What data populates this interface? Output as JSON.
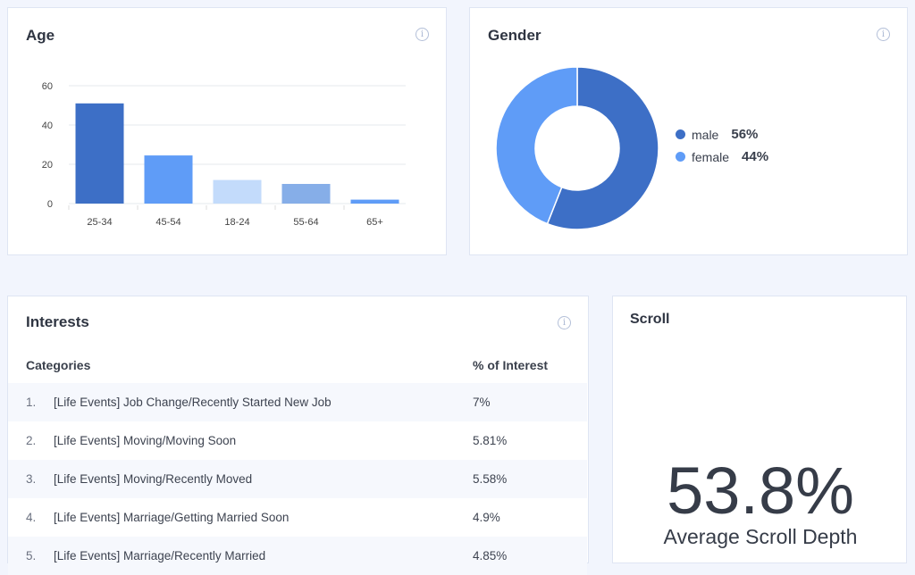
{
  "age": {
    "title": "Age"
  },
  "gender": {
    "title": "Gender",
    "legend": [
      {
        "label": "male",
        "value": "56%",
        "color": "#3d6fc6"
      },
      {
        "label": "female",
        "value": "44%",
        "color": "#5f9cf7"
      }
    ]
  },
  "interests": {
    "title": "Interests",
    "col_category": "Categories",
    "col_percent": "% of Interest",
    "rows": [
      {
        "n": "1.",
        "category": "[Life Events] Job Change/Recently Started New Job",
        "percent": "7%"
      },
      {
        "n": "2.",
        "category": "[Life Events] Moving/Moving Soon",
        "percent": "5.81%"
      },
      {
        "n": "3.",
        "category": "[Life Events] Moving/Recently Moved",
        "percent": "5.58%"
      },
      {
        "n": "4.",
        "category": "[Life Events] Marriage/Getting Married Soon",
        "percent": "4.9%"
      },
      {
        "n": "5.",
        "category": "[Life Events] Marriage/Recently Married",
        "percent": "4.85%"
      }
    ]
  },
  "scroll": {
    "title": "Scroll",
    "value": "53.8%",
    "label": "Average Scroll Depth"
  },
  "chart_data": [
    {
      "type": "bar",
      "title": "Age",
      "categories": [
        "25-34",
        "45-54",
        "18-24",
        "55-64",
        "65+"
      ],
      "values": [
        51,
        24.5,
        12,
        10,
        2
      ],
      "ylim": [
        0,
        60
      ],
      "yticks": [
        0,
        20,
        40,
        60
      ],
      "colors": [
        "#3d6fc6",
        "#5f9cf7",
        "#c3dbfb",
        "#86aee8",
        "#5f9cf7"
      ],
      "grid": true
    },
    {
      "type": "pie",
      "title": "Gender",
      "labels": [
        "male",
        "female"
      ],
      "values": [
        56,
        44
      ],
      "colors": [
        "#3d6fc6",
        "#5f9cf7"
      ],
      "donut": true,
      "legend": "right"
    }
  ]
}
